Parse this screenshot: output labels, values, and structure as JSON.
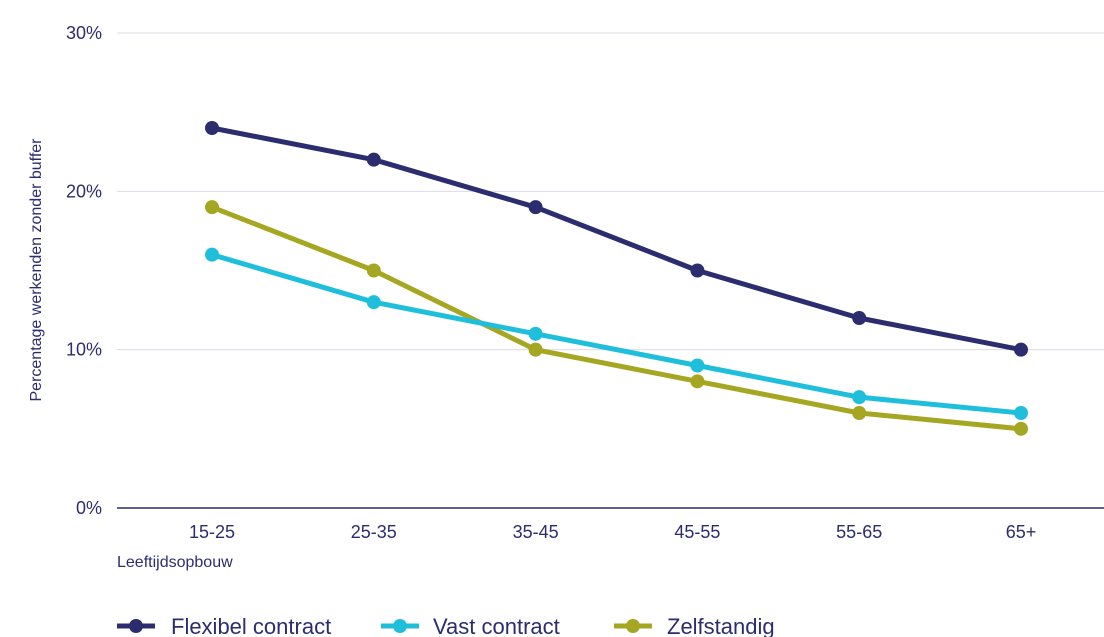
{
  "chart_data": {
    "type": "line",
    "title": "",
    "xlabel": "Leeftijdsopbouw",
    "ylabel": "Percentage werkenden zonder buffer",
    "categories": [
      "15-25",
      "25-35",
      "35-45",
      "45-55",
      "55-65",
      "65+"
    ],
    "ylim": [
      0,
      30
    ],
    "yticks": [
      "0%",
      "10%",
      "20%",
      "30%"
    ],
    "grid": true,
    "legend_position": "bottom",
    "series": [
      {
        "name": "Flexibel contract",
        "color": "#2b2d6e",
        "values": [
          24,
          22,
          19,
          15,
          12,
          10
        ]
      },
      {
        "name": "Vast contract",
        "color": "#1fbfdc",
        "values": [
          16,
          13,
          11,
          9,
          7,
          6
        ]
      },
      {
        "name": "Zelfstandig",
        "color": "#a5a621",
        "values": [
          19,
          15,
          10,
          8,
          6,
          5
        ]
      }
    ]
  }
}
